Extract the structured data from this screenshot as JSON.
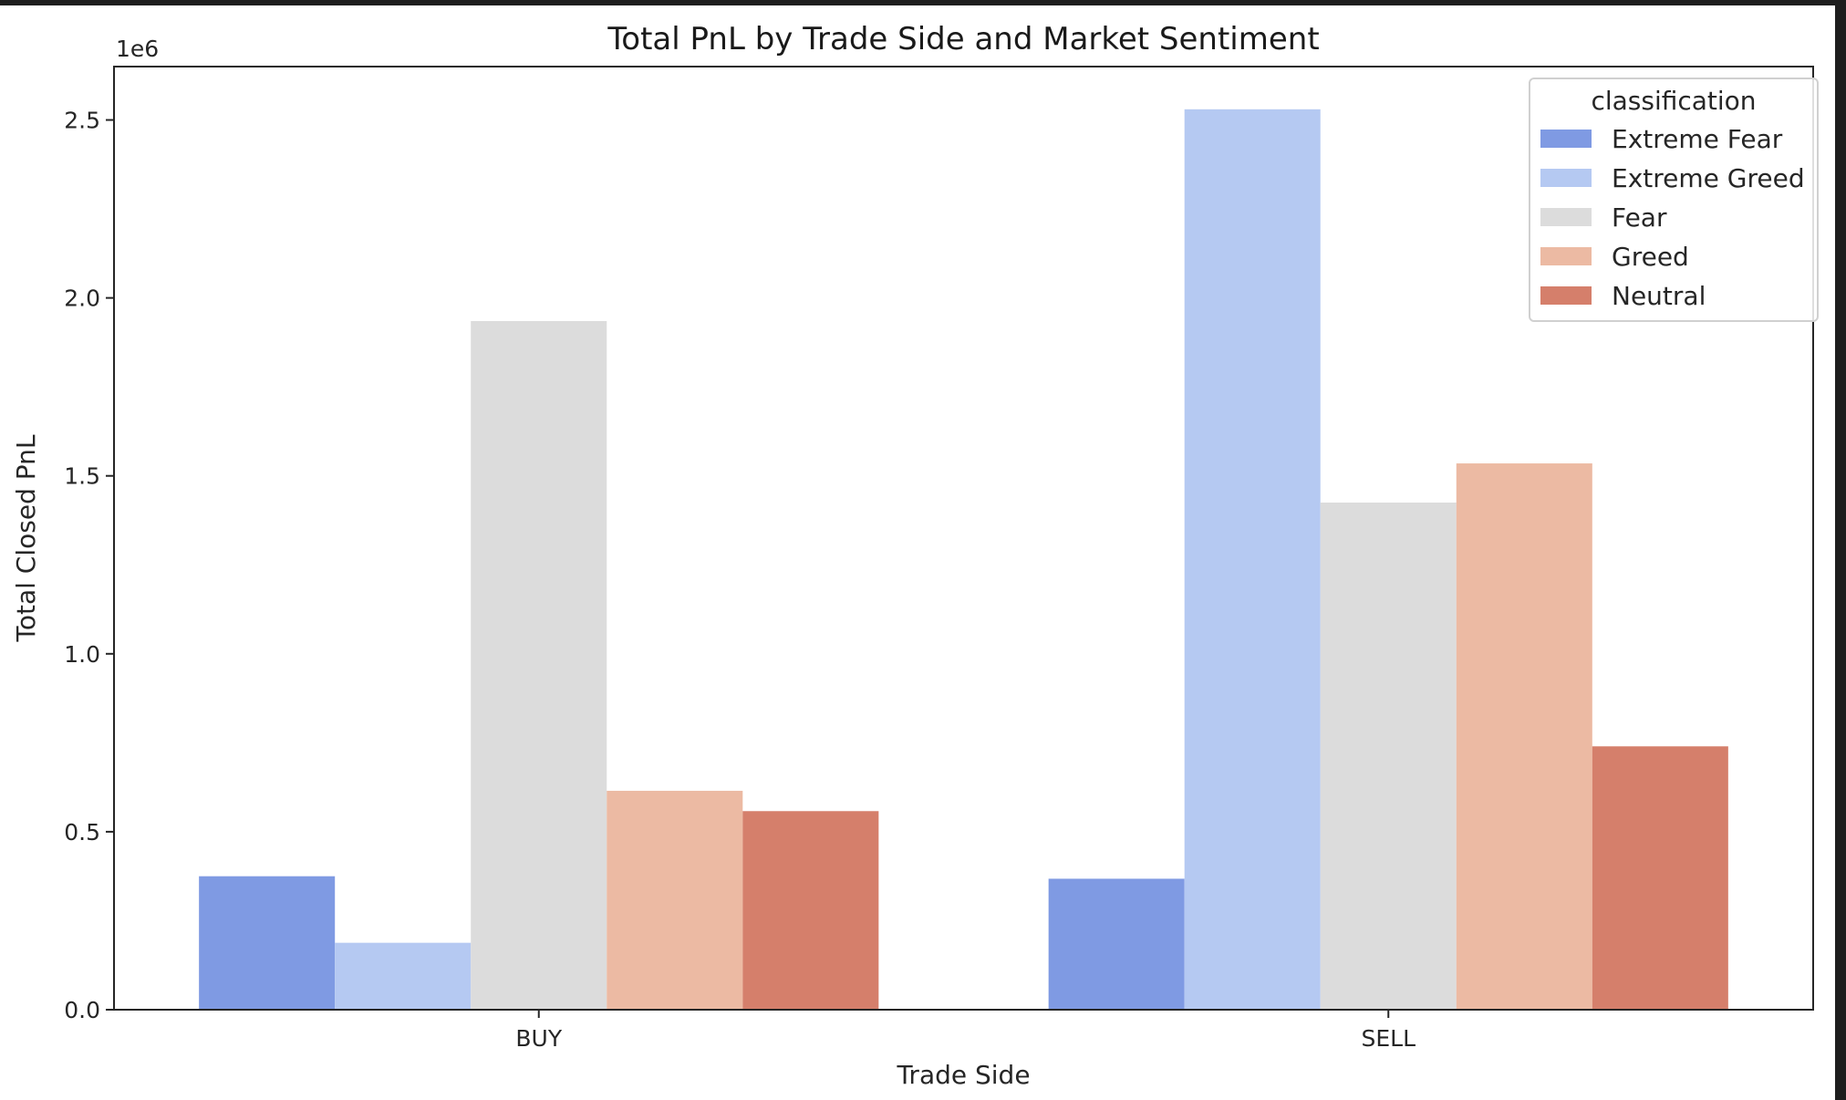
{
  "chart_data": {
    "type": "bar",
    "title": "Total PnL by Trade Side and Market Sentiment",
    "xlabel": "Trade Side",
    "ylabel": "Total Closed PnL",
    "y_scale_label": "1e6",
    "ylim": [
      0,
      2.65
    ],
    "yticks": [
      0.0,
      0.5,
      1.0,
      1.5,
      2.0,
      2.5
    ],
    "ytick_labels": [
      "0.0",
      "0.5",
      "1.0",
      "1.5",
      "2.0",
      "2.5"
    ],
    "categories": [
      "BUY",
      "SELL"
    ],
    "legend_title": "classification",
    "legend_position": "top-right",
    "grid": false,
    "series": [
      {
        "name": "Extreme Fear",
        "color": "#7f9ae3",
        "values": [
          0.375,
          0.368
        ]
      },
      {
        "name": "Extreme Greed",
        "color": "#b5c9f2",
        "values": [
          0.188,
          2.53
        ]
      },
      {
        "name": "Fear",
        "color": "#dcdcdc",
        "values": [
          1.935,
          1.425
        ]
      },
      {
        "name": "Greed",
        "color": "#ecbaa3",
        "values": [
          0.615,
          1.535
        ]
      },
      {
        "name": "Neutral",
        "color": "#d57f6b",
        "values": [
          0.558,
          0.74
        ]
      }
    ]
  }
}
